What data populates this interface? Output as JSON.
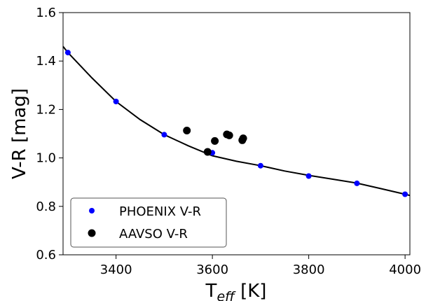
{
  "chart_data": {
    "type": "scatter",
    "xlabel_main": "T",
    "xlabel_sub": "eff",
    "xlabel_unit": " [K]",
    "ylabel": "V-R [mag]",
    "xlim": [
      3290,
      4010
    ],
    "ylim": [
      0.6,
      1.6
    ],
    "xticks": [
      3400,
      3600,
      3800,
      4000
    ],
    "yticks": [
      0.6,
      0.8,
      1.0,
      1.2,
      1.4,
      1.6
    ],
    "xtick_labels": [
      "3400",
      "3600",
      "3800",
      "4000"
    ],
    "ytick_labels": [
      "0.6",
      "0.8",
      "1.0",
      "1.2",
      "1.4",
      "1.6"
    ],
    "grid": false,
    "legend_position": "lower-left",
    "series": [
      {
        "name": "PHOENIX V-R",
        "color": "#0000ff",
        "marker": "circle-small",
        "x": [
          3300,
          3400,
          3500,
          3600,
          3700,
          3800,
          3900,
          4000
        ],
        "y": [
          1.435,
          1.233,
          1.096,
          1.021,
          0.968,
          0.925,
          0.895,
          0.85
        ]
      },
      {
        "name": "AAVSO V-R",
        "color": "#000000",
        "marker": "circle-large",
        "x": [
          3547,
          3590,
          3605,
          3630,
          3635,
          3662,
          3664
        ],
        "y": [
          1.113,
          1.025,
          1.07,
          1.097,
          1.093,
          1.073,
          1.081
        ]
      }
    ],
    "fit_line": {
      "color": "#000000",
      "x": [
        3290,
        3300,
        3350,
        3400,
        3450,
        3500,
        3550,
        3600,
        3650,
        3700,
        3750,
        3800,
        3850,
        3900,
        3950,
        4000,
        4010
      ],
      "y": [
        1.46,
        1.435,
        1.33,
        1.233,
        1.158,
        1.096,
        1.05,
        1.009,
        0.986,
        0.968,
        0.946,
        0.928,
        0.912,
        0.896,
        0.873,
        0.85,
        0.845
      ]
    }
  }
}
